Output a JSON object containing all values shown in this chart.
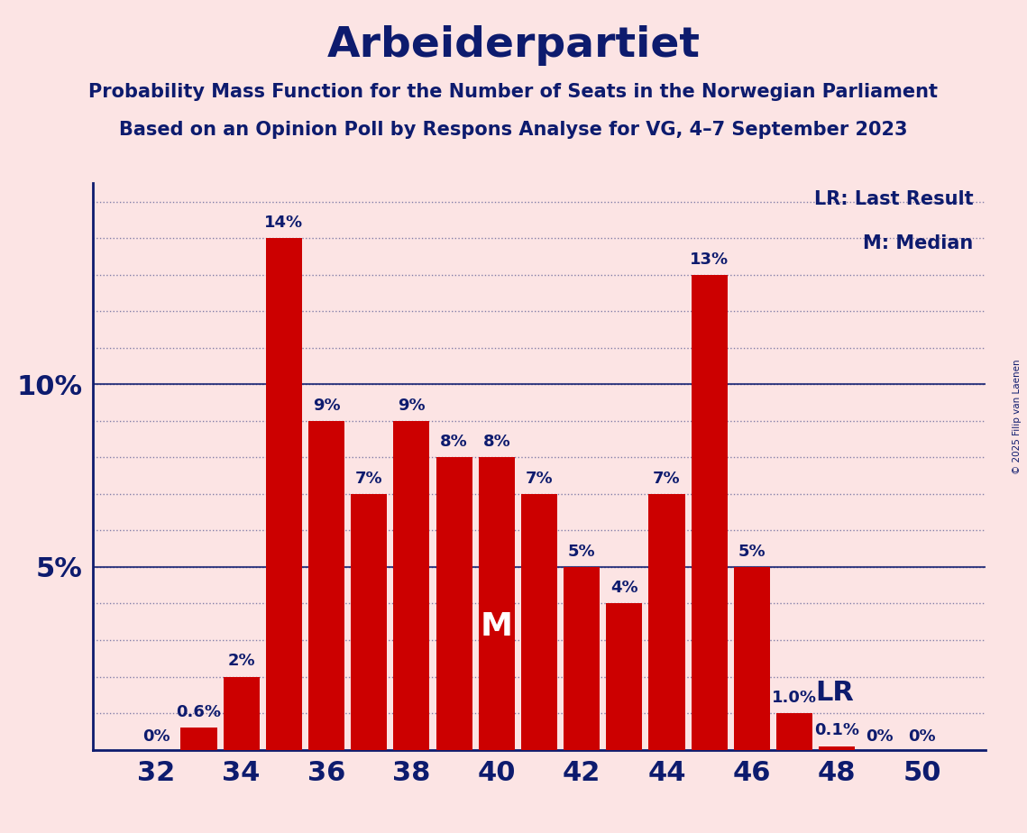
{
  "title": "Arbeiderpartiet",
  "subtitle1": "Probability Mass Function for the Number of Seats in the Norwegian Parliament",
  "subtitle2": "Based on an Opinion Poll by Respons Analyse for VG, 4–7 September 2023",
  "copyright": "© 2025 Filip van Laenen",
  "background_color": "#fce4e4",
  "bar_color": "#cc0000",
  "title_color": "#0d1b6e",
  "seats": [
    32,
    33,
    34,
    35,
    36,
    37,
    38,
    39,
    40,
    41,
    42,
    43,
    44,
    45,
    46,
    47,
    48,
    49,
    50
  ],
  "probabilities": [
    0.0,
    0.6,
    2.0,
    14.0,
    9.0,
    7.0,
    9.0,
    8.0,
    8.0,
    7.0,
    5.0,
    4.0,
    7.0,
    13.0,
    5.0,
    1.0,
    0.1,
    0.0,
    0.0
  ],
  "labels": [
    "0%",
    "0.6%",
    "2%",
    "14%",
    "9%",
    "7%",
    "9%",
    "8%",
    "8%",
    "7%",
    "5%",
    "4%",
    "7%",
    "13%",
    "5%",
    "1.0%",
    "0.1%",
    "0%",
    "0%"
  ],
  "median_seat": 40,
  "last_result_seat": 47,
  "xlim": [
    30.5,
    51.5
  ],
  "ylim": [
    0,
    15.5
  ],
  "yticks": [
    5,
    10
  ],
  "ytick_labels": [
    "5%",
    "10%"
  ],
  "xticks": [
    32,
    34,
    36,
    38,
    40,
    42,
    44,
    46,
    48,
    50
  ],
  "legend_lr": "LR: Last Result",
  "legend_m": "M: Median",
  "median_label": "M",
  "lr_label": "LR"
}
